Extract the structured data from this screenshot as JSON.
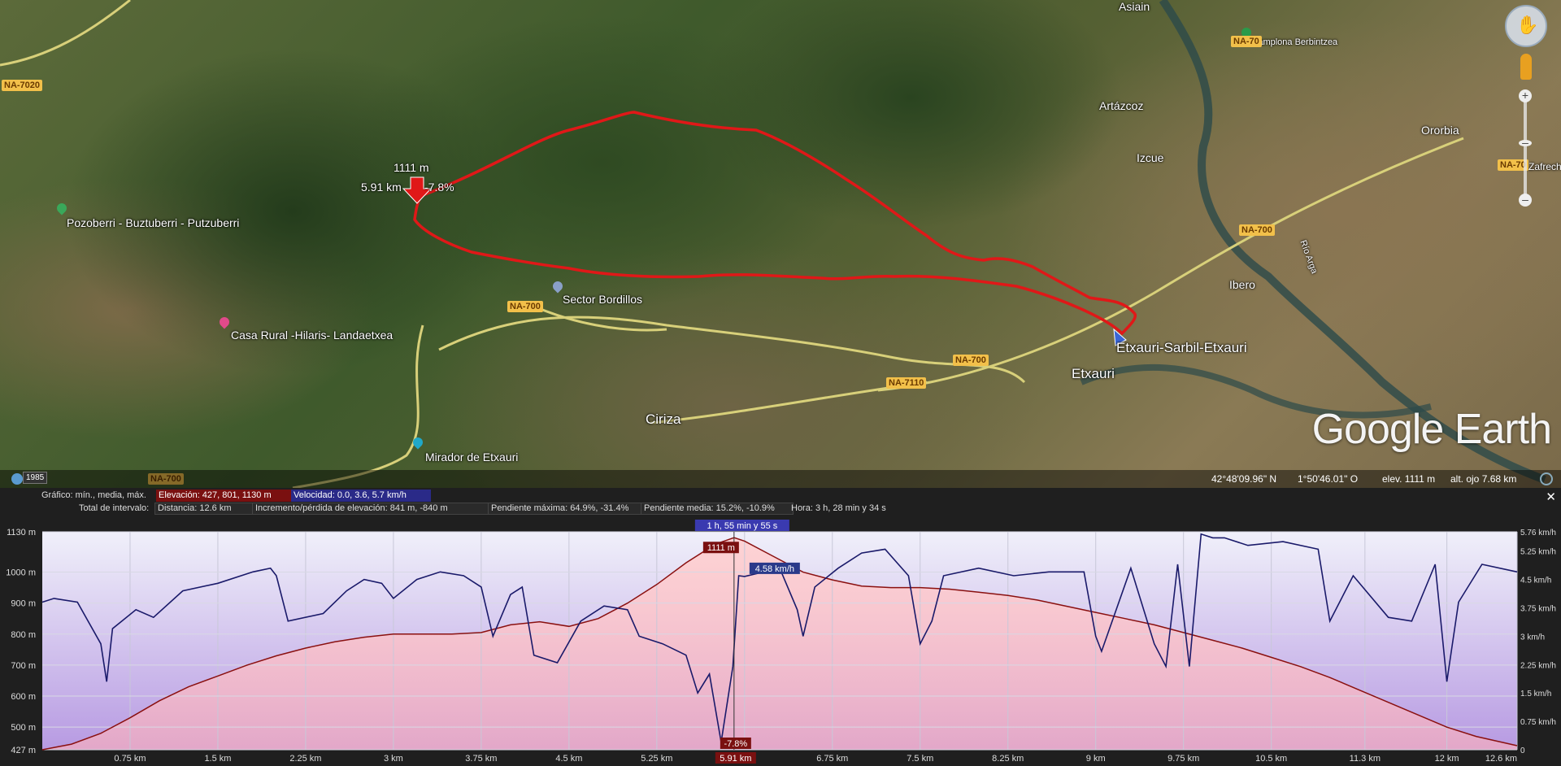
{
  "map": {
    "places": [
      {
        "name": "Asiain"
      },
      {
        "name": "Artázcoz"
      },
      {
        "name": "Izcue"
      },
      {
        "name": "Ororbia"
      },
      {
        "name": "Ibero"
      },
      {
        "name": "Etxauri-Sarbil-Etxauri"
      },
      {
        "name": "Etxauri"
      },
      {
        "name": "Ciriza"
      },
      {
        "name": "Sector Bordillos"
      },
      {
        "name": "Pozoberri - Buztuberri - Putzuberri"
      },
      {
        "name": "Casa Rural -Hilaris- Landaetxea"
      },
      {
        "name": "Mirador de Etxauri"
      },
      {
        "name": "Pamplona Berbintzea"
      },
      {
        "name": "Río Arga"
      },
      {
        "name": "Zafrech"
      }
    ],
    "roads": [
      "NA-7020",
      "NA-700",
      "NA-700",
      "NA-700",
      "NA-700",
      "NA-7110",
      "NA-70",
      "NA-70",
      "NA-700"
    ],
    "route_marker": {
      "altitude": "1111 m",
      "distance": "5.91 km",
      "slope": "-7.8%"
    },
    "logo": "Google Earth",
    "year": "1985",
    "status": {
      "lat": "42°48'09.96\" N",
      "lon": "1°50'46.01\" O",
      "elev": "elev.  1111 m",
      "eye": "alt. ojo   7.68 km"
    },
    "colors": {
      "route": "#e01818",
      "road_badge": "#f2c04a"
    }
  },
  "profile": {
    "row1": {
      "label": "Gráfico: mín., media, máx.",
      "elevation": "Elevación: 427, 801, 1130 m",
      "velocity": "Velocidad: 0.0, 3.6, 5.7 km/h"
    },
    "row2": {
      "label": "Total de intervalo:",
      "distance": "Distancia: 12.6 km",
      "gain": "Incremento/pérdida de elevación: 841 m, -840 m",
      "max_slope": "Pendiente máxima: 64.9%, -31.4%",
      "avg_slope": "Pendiente media: 15.2%, -10.9%",
      "time": "Hora: 3 h, 28 min y 34 s"
    },
    "cursor": {
      "time": "1 h, 55 min y 55 s",
      "elev": "1111 m",
      "speed": "4.58 km/h",
      "slope": "-7.8%",
      "dist": "5.91 km",
      "x_km": 5.91
    },
    "close": "✕"
  },
  "chart_data": {
    "type": "area",
    "x_unit": "km",
    "xlim": [
      0,
      12.6
    ],
    "x_ticks": [
      "0.75 km",
      "1.5 km",
      "2.25 km",
      "3 km",
      "3.75 km",
      "4.5 km",
      "5.25 km",
      "6 km",
      "6.75 km",
      "7.5 km",
      "8.25 km",
      "9 km",
      "9.75 km",
      "10.5 km",
      "11.3 km",
      "12 km",
      "12.6 km"
    ],
    "x_tick_values": [
      0.75,
      1.5,
      2.25,
      3,
      3.75,
      4.5,
      5.25,
      6,
      6.75,
      7.5,
      8.25,
      9,
      9.75,
      10.5,
      11.3,
      12,
      12.6
    ],
    "y_left_ticks": [
      "1130 m",
      "1000 m",
      "900 m",
      "800 m",
      "700 m",
      "600 m",
      "500 m",
      "427 m"
    ],
    "y_left_values": [
      1130,
      1000,
      900,
      800,
      700,
      600,
      500,
      427
    ],
    "ylim_left": [
      427,
      1130
    ],
    "y_right_ticks": [
      "5.76 km/h",
      "5.25 km/h",
      "4.5 km/h",
      "3.75 km/h",
      "3 km/h",
      "2.25 km/h",
      "1.5 km/h",
      "0.75 km/h",
      "0"
    ],
    "y_right_values": [
      5.76,
      5.25,
      4.5,
      3.75,
      3,
      2.25,
      1.5,
      0.75,
      0
    ],
    "ylim_right": [
      0,
      5.76
    ],
    "series": [
      {
        "name": "Elevación",
        "unit": "m",
        "color": "#8a1010",
        "x": [
          0,
          0.25,
          0.5,
          0.75,
          1.0,
          1.25,
          1.5,
          1.75,
          2.0,
          2.25,
          2.5,
          2.75,
          3.0,
          3.25,
          3.5,
          3.75,
          4.0,
          4.25,
          4.5,
          4.75,
          5.0,
          5.25,
          5.5,
          5.75,
          5.91,
          6.0,
          6.25,
          6.5,
          6.75,
          7.0,
          7.25,
          7.5,
          7.75,
          8.0,
          8.25,
          8.5,
          8.75,
          9.0,
          9.25,
          9.5,
          9.75,
          10.0,
          10.25,
          10.5,
          10.75,
          11.0,
          11.25,
          11.5,
          11.75,
          12.0,
          12.25,
          12.6
        ],
        "y": [
          427,
          445,
          480,
          530,
          585,
          630,
          665,
          700,
          730,
          755,
          775,
          790,
          800,
          800,
          800,
          805,
          830,
          840,
          825,
          850,
          900,
          960,
          1030,
          1090,
          1111,
          1100,
          1050,
          1000,
          975,
          955,
          950,
          950,
          945,
          935,
          925,
          910,
          890,
          870,
          850,
          830,
          805,
          780,
          755,
          725,
          695,
          660,
          620,
          580,
          540,
          500,
          470,
          440
        ]
      },
      {
        "name": "Velocidad",
        "unit": "km/h",
        "color": "#1a1a6a",
        "x": [
          0,
          0.1,
          0.3,
          0.5,
          0.55,
          0.6,
          0.8,
          0.95,
          1.2,
          1.5,
          1.8,
          1.95,
          2.0,
          2.1,
          2.4,
          2.6,
          2.75,
          2.9,
          3.0,
          3.2,
          3.4,
          3.6,
          3.75,
          3.85,
          4.0,
          4.1,
          4.2,
          4.4,
          4.6,
          4.8,
          5.0,
          5.1,
          5.3,
          5.5,
          5.6,
          5.7,
          5.8,
          5.9,
          5.95,
          6.0,
          6.3,
          6.45,
          6.5,
          6.6,
          6.8,
          7.0,
          7.2,
          7.4,
          7.5,
          7.6,
          7.7,
          8.0,
          8.3,
          8.6,
          8.9,
          9.0,
          9.05,
          9.3,
          9.5,
          9.6,
          9.7,
          9.8,
          9.9,
          10.0,
          10.1,
          10.3,
          10.6,
          10.9,
          11.0,
          11.2,
          11.5,
          11.7,
          11.9,
          12.0,
          12.1,
          12.3,
          12.6
        ],
        "y": [
          3.9,
          4.0,
          3.9,
          2.8,
          1.8,
          3.2,
          3.7,
          3.5,
          4.2,
          4.4,
          4.7,
          4.8,
          4.6,
          3.4,
          3.6,
          4.2,
          4.5,
          4.4,
          4.0,
          4.5,
          4.7,
          4.6,
          4.3,
          3.0,
          4.1,
          4.3,
          2.5,
          2.3,
          3.4,
          3.8,
          3.7,
          3.0,
          2.8,
          2.5,
          1.5,
          2.0,
          0.2,
          2.2,
          4.6,
          4.58,
          4.8,
          3.7,
          3.0,
          4.3,
          4.8,
          5.2,
          5.3,
          4.6,
          2.8,
          3.4,
          4.6,
          4.8,
          4.6,
          4.7,
          4.7,
          3.0,
          2.6,
          4.8,
          2.8,
          2.2,
          4.9,
          2.2,
          5.7,
          5.6,
          5.6,
          5.4,
          5.5,
          5.3,
          3.4,
          4.6,
          3.5,
          3.4,
          4.9,
          1.8,
          3.9,
          4.9,
          4.7
        ]
      }
    ]
  }
}
